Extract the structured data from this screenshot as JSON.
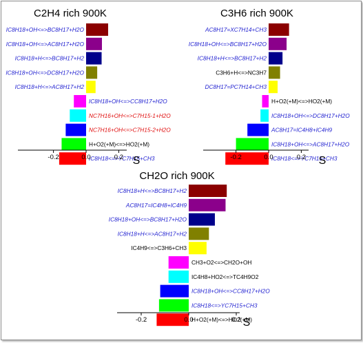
{
  "chart_data": [
    {
      "type": "bar",
      "orientation": "horizontal",
      "title": "C2H4 rich 900K",
      "xlabel": "S",
      "ylabel": "",
      "xlim": [
        -0.25,
        0.25
      ],
      "xticks": [
        -0.2,
        0.0,
        0.2
      ],
      "xtick_labels": [
        "-0.2",
        "0.0",
        "0.2"
      ],
      "grid": false,
      "categories": [
        "IC8H18+OH<=>BC8H17+H2O",
        "IC8H18+OH<=>AC8H17+H2O",
        "IC8H18+H<=>BC8H17+H2",
        "IC8H18+OH<=>DC8H17+H2O",
        "IC8H18+H<=>AC8H17+H2",
        "IC8H18+OH<=>CC8H17+H2O",
        "NC7H16+OH<=>C7H15-1+H2O",
        "NC7H16+OH<=>C7H15-2+H2O",
        "H+O2(+M)<=>HO2(+M)",
        "IC8H18<=>YC7H15+CH3"
      ],
      "values": [
        0.135,
        0.097,
        0.095,
        0.068,
        0.058,
        -0.075,
        -0.1,
        -0.125,
        -0.15,
        -0.165
      ],
      "bar_colors": [
        "#8b0000",
        "#8b008b",
        "#00008b",
        "#808000",
        "#ffff00",
        "#ff00ff",
        "#00ffff",
        "#0000ff",
        "#00ff00",
        "#ff0000"
      ],
      "label_colors": [
        "#1f1fd0",
        "#1f1fd0",
        "#1f1fd0",
        "#1f1fd0",
        "#1f1fd0",
        "#1f1fd0",
        "#e01010",
        "#e01010",
        "#000000",
        "#1f1fd0"
      ],
      "label_italic": [
        true,
        true,
        true,
        true,
        true,
        true,
        true,
        true,
        false,
        true
      ]
    },
    {
      "type": "bar",
      "orientation": "horizontal",
      "title": "C3H6 rich 900K",
      "xlabel": "S",
      "ylabel": "",
      "xlim": [
        -0.3,
        0.25
      ],
      "xticks": [
        -0.2,
        0.0,
        0.2
      ],
      "xtick_labels": [
        "-0.2",
        "0.0",
        "0.2"
      ],
      "grid": false,
      "categories": [
        "AC8H17=XC7H14+CH3",
        "IC8H18+OH<=>BC8H17+H2O",
        "IC8H18+H<=>BC8H17+H2",
        "C3H6+H<=>NC3H7",
        "DC8H17=PC7H14+CH3",
        "H+O2(+M)<=>HO2(+M)",
        "IC8H18+OH<=>DC8H17+H2O",
        "AC8H17=IC4H8+IC4H9",
        "IC8H18+OH<=>AC8H17+H2O",
        "IC8H18<=>YC7H15+CH3"
      ],
      "values": [
        0.125,
        0.11,
        0.085,
        0.07,
        0.055,
        -0.04,
        -0.05,
        -0.13,
        -0.2,
        -0.265
      ],
      "bar_colors": [
        "#8b0000",
        "#8b008b",
        "#00008b",
        "#808000",
        "#ffff00",
        "#ff00ff",
        "#00ffff",
        "#0000ff",
        "#00ff00",
        "#ff0000"
      ],
      "label_colors": [
        "#1f1fd0",
        "#1f1fd0",
        "#1f1fd0",
        "#000000",
        "#1f1fd0",
        "#000000",
        "#1f1fd0",
        "#1f1fd0",
        "#1f1fd0",
        "#1f1fd0"
      ],
      "label_italic": [
        true,
        true,
        true,
        false,
        true,
        false,
        true,
        true,
        true,
        true
      ]
    },
    {
      "type": "bar",
      "orientation": "horizontal",
      "title": "CH2O rich 900K",
      "xlabel": "S",
      "ylabel": "",
      "xlim": [
        -0.25,
        0.25
      ],
      "xticks": [
        -0.2,
        0.0,
        0.2
      ],
      "xtick_labels": [
        "-0.2",
        "0.0",
        "0.2"
      ],
      "grid": false,
      "categories": [
        "IC8H18+H<=>BC8H17+H2",
        "AC8H17=IC4H8+IC4H9",
        "IC8H18+OH<=>BC8H17+H2O",
        "IC8H18+H<=>AC8H17+H2",
        "IC4H9<=>C3H6+CH3",
        "CH3+O2<=>CH2O+OH",
        "IC4H8+HO2<=>TC4H9O2",
        "IC8H18+OH<=>CC8H17+H2O",
        "IC8H18<=>YC7H15+CH3",
        "H+O2(+M)<=>HO2(+M)"
      ],
      "values": [
        0.16,
        0.155,
        0.11,
        0.085,
        0.075,
        -0.085,
        -0.085,
        -0.12,
        -0.125,
        -0.135
      ],
      "bar_colors": [
        "#8b0000",
        "#8b008b",
        "#00008b",
        "#808000",
        "#ffff00",
        "#ff00ff",
        "#00ffff",
        "#0000ff",
        "#00ff00",
        "#ff0000"
      ],
      "label_colors": [
        "#1f1fd0",
        "#1f1fd0",
        "#1f1fd0",
        "#1f1fd0",
        "#000000",
        "#000000",
        "#000000",
        "#1f1fd0",
        "#1f1fd0",
        "#000000"
      ],
      "label_italic": [
        true,
        true,
        true,
        true,
        false,
        false,
        false,
        true,
        true,
        false
      ]
    }
  ]
}
